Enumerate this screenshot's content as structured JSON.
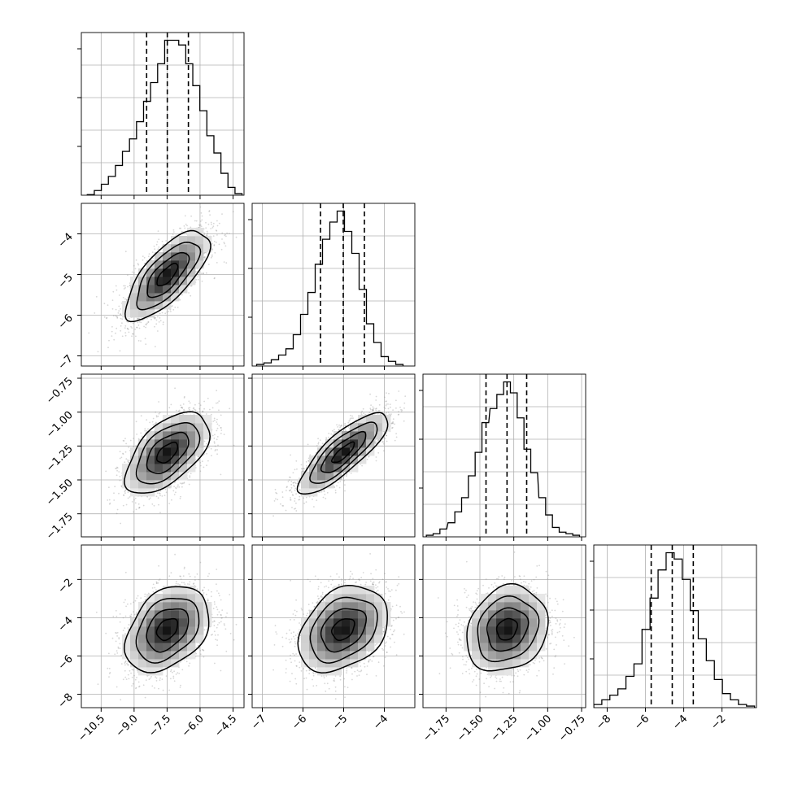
{
  "chart_data": {
    "type": "corner",
    "parameters": [
      {
        "range": [
          -11.4,
          -4.0
        ],
        "ticks": [
          -10.5,
          -9.0,
          -7.5,
          -6.0,
          -4.5
        ],
        "tick_labels": [
          "−10.5",
          "−9.0",
          "−7.5",
          "−6.0",
          "−4.5"
        ],
        "quantiles": [
          -8.43,
          -7.49,
          -6.53
        ]
      },
      {
        "range": [
          -7.25,
          -3.25
        ],
        "ticks": [
          -7,
          -6,
          -5,
          -4
        ],
        "tick_labels": [
          "−7",
          "−6",
          "−5",
          "−4"
        ],
        "quantiles": [
          -5.57,
          -5.01,
          -4.49
        ]
      },
      {
        "range": [
          -1.92,
          -0.72
        ],
        "ticks": [
          -1.75,
          -1.5,
          -1.25,
          -1.0,
          -0.75
        ],
        "tick_labels": [
          "−1.75",
          "−1.50",
          "−1.25",
          "−1.00",
          "−0.75"
        ],
        "quantiles": [
          -1.455,
          -1.3,
          -1.155
        ]
      },
      {
        "range": [
          -8.7,
          -0.2
        ],
        "ticks": [
          -8,
          -6,
          -4,
          -2
        ],
        "tick_labels": [
          "−8",
          "−6",
          "−4",
          "−2"
        ],
        "quantiles": [
          -5.7,
          -4.6,
          -3.5
        ]
      }
    ],
    "diagonal_histograms": [
      {
        "bin_centers": [
          -10.97,
          -10.65,
          -10.33,
          -10.01,
          -9.69,
          -9.37,
          -9.05,
          -8.73,
          -8.41,
          -8.09,
          -7.77,
          -7.45,
          -7.13,
          -6.81,
          -6.49,
          -6.17,
          -5.85,
          -5.53,
          -5.21,
          -4.89,
          -4.57,
          -4.25
        ],
        "values": [
          0.004,
          0.03,
          0.07,
          0.12,
          0.19,
          0.28,
          0.36,
          0.47,
          0.6,
          0.72,
          0.84,
          0.99,
          0.99,
          0.96,
          0.84,
          0.7,
          0.54,
          0.38,
          0.27,
          0.14,
          0.05,
          0.01
        ]
      },
      {
        "bin_centers": [
          -7.05,
          -6.87,
          -6.69,
          -6.51,
          -6.33,
          -6.15,
          -5.97,
          -5.79,
          -5.61,
          -5.43,
          -5.25,
          -5.07,
          -4.89,
          -4.71,
          -4.53,
          -4.35,
          -4.17,
          -3.99,
          -3.81,
          -3.63
        ],
        "values": [
          0.01,
          0.02,
          0.04,
          0.07,
          0.11,
          0.2,
          0.33,
          0.47,
          0.65,
          0.81,
          0.92,
          0.99,
          0.86,
          0.72,
          0.49,
          0.27,
          0.15,
          0.06,
          0.03,
          0.01
        ]
      },
      {
        "bin_centers": [
          -1.87,
          -1.82,
          -1.77,
          -1.71,
          -1.66,
          -1.61,
          -1.56,
          -1.51,
          -1.46,
          -1.4,
          -1.35,
          -1.3,
          -1.25,
          -1.2,
          -1.15,
          -1.1,
          -1.04,
          -0.99,
          -0.94,
          -0.89,
          -0.84,
          -0.79
        ],
        "values": [
          0.01,
          0.02,
          0.05,
          0.09,
          0.16,
          0.25,
          0.39,
          0.54,
          0.73,
          0.82,
          0.91,
          0.99,
          0.92,
          0.76,
          0.56,
          0.41,
          0.25,
          0.14,
          0.06,
          0.03,
          0.02,
          0.01
        ]
      },
      {
        "bin_centers": [
          -8.49,
          -8.07,
          -7.65,
          -7.23,
          -6.81,
          -6.39,
          -5.97,
          -5.55,
          -5.13,
          -4.71,
          -4.29,
          -3.87,
          -3.45,
          -3.03,
          -2.61,
          -2.19,
          -1.77,
          -1.35,
          -0.93,
          -0.51
        ],
        "values": [
          0.02,
          0.05,
          0.08,
          0.12,
          0.2,
          0.28,
          0.5,
          0.7,
          0.88,
          0.99,
          0.95,
          0.82,
          0.62,
          0.44,
          0.3,
          0.18,
          0.09,
          0.05,
          0.02,
          0.01
        ]
      }
    ],
    "joint_distributions": [
      {
        "x_param": 0,
        "y_param": 1,
        "mean": [
          -7.49,
          -5.01
        ],
        "sd": [
          0.95,
          0.55
        ],
        "corr": 0.72
      },
      {
        "x_param": 0,
        "y_param": 2,
        "mean": [
          -7.49,
          -1.3
        ],
        "sd": [
          0.95,
          0.15
        ],
        "corr": 0.56
      },
      {
        "x_param": 1,
        "y_param": 2,
        "mean": [
          -5.01,
          -1.3
        ],
        "sd": [
          0.55,
          0.15
        ],
        "corr": 0.82
      },
      {
        "x_param": 0,
        "y_param": 3,
        "mean": [
          -7.49,
          -4.6
        ],
        "sd": [
          0.95,
          1.12
        ],
        "corr": 0.35
      },
      {
        "x_param": 1,
        "y_param": 3,
        "mean": [
          -5.01,
          -4.6
        ],
        "sd": [
          0.55,
          1.12
        ],
        "corr": 0.32
      },
      {
        "x_param": 2,
        "y_param": 3,
        "mean": [
          -1.3,
          -4.6
        ],
        "sd": [
          0.15,
          1.12
        ],
        "corr": 0.18
      }
    ],
    "contour_levels_sigma": [
      0.5,
      1.0,
      1.5,
      2.0
    ],
    "colors": {
      "density": "#000000",
      "scatter": "#8c8c8c",
      "grid": "#b0b0b0",
      "quantile_line": "#000000"
    },
    "grid": true,
    "legend": "none"
  }
}
